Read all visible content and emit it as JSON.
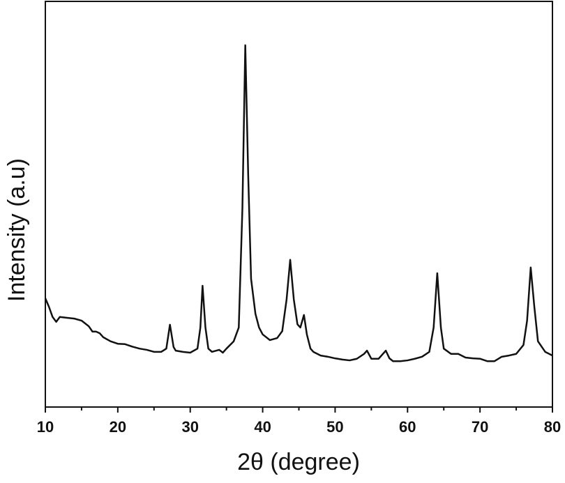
{
  "chart_data": {
    "type": "line",
    "x_label": "2θ (degree)",
    "y_label": "Intensity (a.u)",
    "xlim": [
      10,
      80
    ],
    "xticks": [
      10,
      20,
      30,
      40,
      50,
      60,
      70,
      80
    ],
    "xticks_minor": [
      15,
      25,
      35,
      45,
      55,
      65,
      75
    ],
    "ylim": [
      0,
      100
    ],
    "series": [
      {
        "color": "#111111",
        "x": [
          10,
          10.5,
          11,
          11.5,
          12,
          13,
          14,
          15,
          16,
          16.5,
          17,
          17.5,
          18,
          19,
          20,
          21,
          22,
          23,
          24,
          25,
          26,
          26.7,
          27.2,
          27.7,
          28,
          29,
          30,
          31,
          31.4,
          31.7,
          32.1,
          32.5,
          33,
          34,
          34.5,
          35,
          36,
          36.7,
          37.2,
          37.6,
          38,
          38.4,
          39,
          39.5,
          40,
          41,
          42,
          42.7,
          43.3,
          43.8,
          44.3,
          44.8,
          45.2,
          45.7,
          46.1,
          46.6,
          47,
          48,
          49,
          50,
          51,
          52,
          53,
          54,
          54.4,
          55,
          56,
          57,
          57.5,
          58,
          59,
          60,
          61,
          62,
          63,
          63.6,
          64.1,
          64.6,
          65,
          66,
          67,
          68,
          69,
          70,
          71,
          72,
          73,
          74,
          75,
          76,
          76.5,
          77,
          77.5,
          78,
          79,
          80
        ],
        "values": [
          26.8,
          24.7,
          22.2,
          21.0,
          22.2,
          22.0,
          21.8,
          21.3,
          19.9,
          18.6,
          18.6,
          18.2,
          17.2,
          16.2,
          15.6,
          15.5,
          14.9,
          14.4,
          14.1,
          13.6,
          13.6,
          14.4,
          20.3,
          14.8,
          13.9,
          13.6,
          13.4,
          14.4,
          19.6,
          29.9,
          19.6,
          14.4,
          13.6,
          14.1,
          13.4,
          14.4,
          16.2,
          19.6,
          48.8,
          89.2,
          57.4,
          31.6,
          23.0,
          19.6,
          17.9,
          16.5,
          17.0,
          18.7,
          26.5,
          36.3,
          26.5,
          20.4,
          19.6,
          22.7,
          17.9,
          14.4,
          13.6,
          12.7,
          12.4,
          12.0,
          11.7,
          11.5,
          11.9,
          13.1,
          13.9,
          11.9,
          11.9,
          13.9,
          12.0,
          11.3,
          11.3,
          11.5,
          11.9,
          12.4,
          13.6,
          19.6,
          33.0,
          19.6,
          14.4,
          13.1,
          13.1,
          12.2,
          12.0,
          11.9,
          11.3,
          11.3,
          12.4,
          12.7,
          13.1,
          15.3,
          21.3,
          34.4,
          24.7,
          16.2,
          13.6,
          12.7
        ]
      }
    ]
  }
}
